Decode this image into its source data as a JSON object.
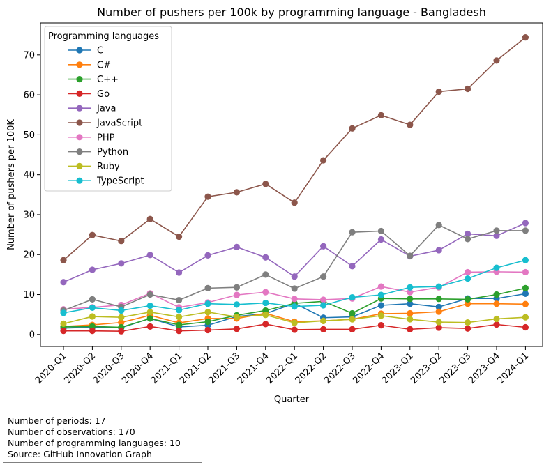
{
  "chart_data": {
    "type": "line",
    "title": "Number of pushers per 100k by programming language - Bangladesh",
    "xlabel": "Quarter",
    "ylabel": "Number of pushers per 100K",
    "ylim": [
      -3,
      78
    ],
    "yticks": [
      0,
      10,
      20,
      30,
      40,
      50,
      60,
      70
    ],
    "grid": false,
    "legend": {
      "title": "Programming languages",
      "placement": "top-left"
    },
    "categories": [
      "2020-Q1",
      "2020-Q2",
      "2020-Q3",
      "2020-Q4",
      "2021-Q1",
      "2021-Q2",
      "2021-Q3",
      "2021-Q4",
      "2022-Q1",
      "2022-Q2",
      "2022-Q3",
      "2022-Q4",
      "2023-Q1",
      "2023-Q2",
      "2023-Q3",
      "2023-Q4",
      "2024-Q1"
    ],
    "series": [
      {
        "name": "C",
        "color": "#1f77b4",
        "values": [
          1.6,
          1.8,
          1.7,
          4.0,
          1.9,
          2.3,
          4.5,
          5.2,
          7.8,
          4.2,
          4.4,
          7.3,
          7.7,
          6.9,
          9.0,
          9.0,
          10.2
        ]
      },
      {
        "name": "C#",
        "color": "#ff7f0e",
        "values": [
          2.0,
          2.4,
          3.0,
          4.8,
          2.9,
          4.0,
          4.0,
          5.3,
          3.2,
          3.4,
          3.8,
          5.2,
          5.3,
          5.7,
          7.7,
          7.7,
          7.6
        ]
      },
      {
        "name": "C++",
        "color": "#2ca02c",
        "values": [
          1.9,
          2.0,
          1.8,
          4.0,
          2.4,
          3.2,
          4.8,
          6.0,
          7.8,
          8.3,
          5.3,
          9.0,
          8.9,
          8.9,
          8.8,
          10.0,
          11.6
        ]
      },
      {
        "name": "Go",
        "color": "#d62728",
        "values": [
          0.9,
          0.9,
          0.8,
          2.0,
          0.9,
          1.1,
          1.4,
          2.6,
          1.2,
          1.3,
          1.3,
          2.3,
          1.3,
          1.7,
          1.5,
          2.5,
          1.8
        ]
      },
      {
        "name": "Java",
        "color": "#9467bd",
        "values": [
          13.1,
          16.2,
          17.8,
          19.9,
          15.5,
          19.8,
          21.9,
          19.3,
          14.5,
          22.1,
          17.1,
          23.8,
          19.6,
          21.1,
          25.2,
          24.7,
          27.9
        ]
      },
      {
        "name": "JavaScript",
        "color": "#8c564b",
        "values": [
          18.6,
          24.9,
          23.4,
          28.9,
          24.5,
          34.5,
          35.6,
          37.7,
          33.0,
          43.6,
          51.6,
          54.9,
          52.5,
          60.8,
          61.5,
          68.6,
          74.4
        ]
      },
      {
        "name": "PHP",
        "color": "#e377c2",
        "values": [
          6.3,
          6.8,
          7.4,
          10.3,
          6.8,
          8.0,
          9.9,
          10.6,
          8.9,
          8.7,
          9.0,
          12.0,
          10.6,
          11.8,
          15.6,
          15.7,
          15.6
        ]
      },
      {
        "name": "Python",
        "color": "#7f7f7f",
        "values": [
          6.0,
          8.8,
          6.9,
          10.0,
          8.6,
          11.6,
          11.8,
          15.0,
          11.5,
          14.5,
          25.6,
          25.9,
          19.7,
          27.4,
          23.9,
          26.0,
          26.0
        ]
      },
      {
        "name": "Ruby",
        "color": "#bcbd22",
        "values": [
          2.7,
          4.5,
          4.3,
          5.6,
          4.4,
          5.6,
          4.4,
          4.9,
          2.9,
          3.4,
          3.8,
          4.7,
          3.8,
          3.1,
          3.0,
          3.9,
          4.3
        ]
      },
      {
        "name": "TypeScript",
        "color": "#17becf",
        "values": [
          5.4,
          6.7,
          6.0,
          7.2,
          6.1,
          7.7,
          7.5,
          7.9,
          7.0,
          7.3,
          9.3,
          9.9,
          11.8,
          12.0,
          14.0,
          16.7,
          18.6
        ]
      }
    ]
  },
  "footnote": {
    "line1": "Number of periods: 17",
    "line2": "Number of observations: 170",
    "line3": "Number of programming languages: 10",
    "line4": "Source: GitHub Innovation Graph"
  }
}
